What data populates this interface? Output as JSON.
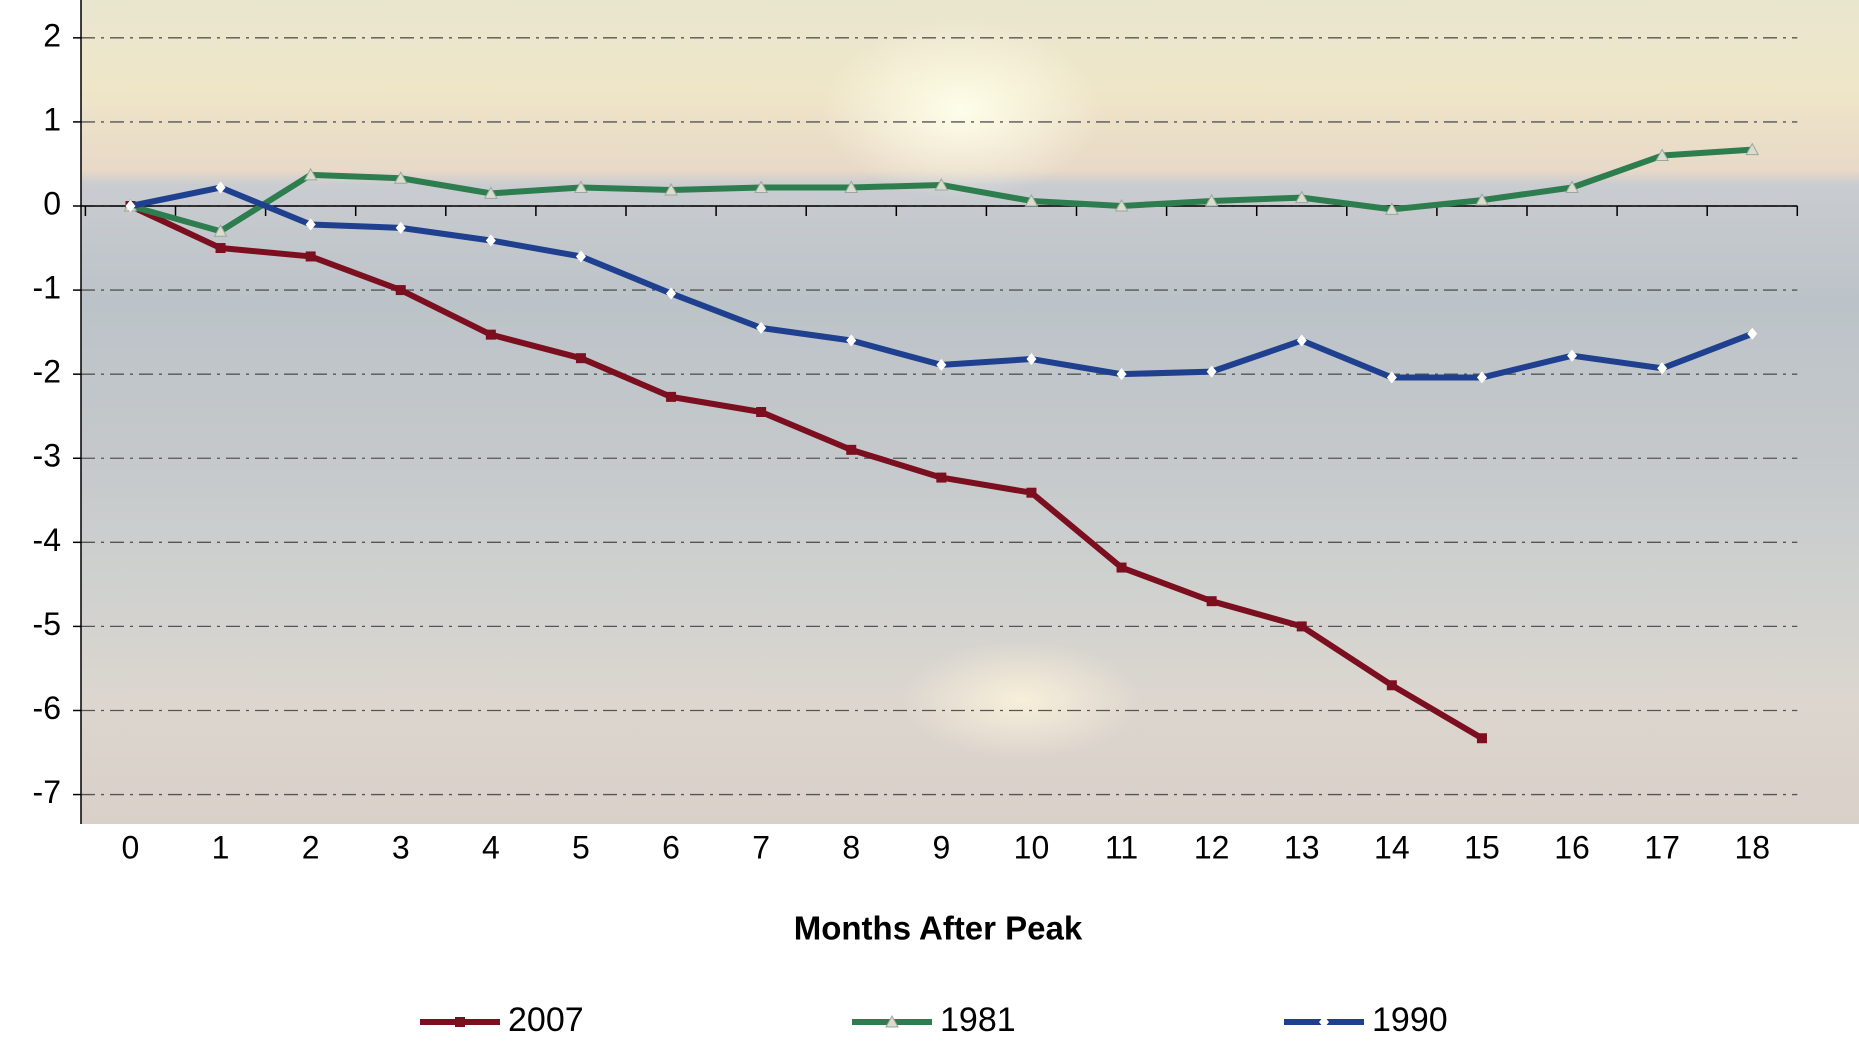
{
  "chart_data": {
    "type": "line",
    "x_label": "Months After Peak",
    "categories": [
      "0",
      "1",
      "2",
      "3",
      "4",
      "5",
      "6",
      "7",
      "8",
      "9",
      "10",
      "11",
      "12",
      "13",
      "14",
      "15",
      "16",
      "17",
      "18"
    ],
    "series": [
      {
        "name": "2007",
        "color": "#7b0f1f",
        "marker": "square",
        "values": [
          0,
          -0.5,
          -0.6,
          -1.0,
          -1.53,
          -1.81,
          -2.27,
          -2.45,
          -2.9,
          -3.23,
          -3.41,
          -4.3,
          -4.7,
          -5.0,
          -5.7,
          -6.33,
          null,
          null,
          null
        ]
      },
      {
        "name": "1981",
        "color": "#2e7d4f",
        "marker": "triangle",
        "values": [
          0,
          -0.3,
          0.37,
          0.33,
          0.15,
          0.22,
          0.19,
          0.22,
          0.22,
          0.25,
          0.06,
          0.0,
          0.06,
          0.1,
          -0.04,
          0.07,
          0.22,
          0.6,
          0.67
        ]
      },
      {
        "name": "1990",
        "color": "#1f3f8f",
        "marker": "diamond",
        "values": [
          0,
          0.22,
          -0.22,
          -0.26,
          -0.41,
          -0.6,
          -1.04,
          -1.45,
          -1.6,
          -1.89,
          -1.82,
          -2.0,
          -1.97,
          -1.6,
          -2.04,
          -2.04,
          -1.78,
          -1.93,
          -1.52
        ]
      }
    ],
    "ylim": [
      -7.35,
      2.45
    ],
    "yticks": [
      2,
      1,
      0,
      -1,
      -2,
      -3,
      -4,
      -5,
      -6,
      -7
    ],
    "grid": true,
    "legend": "bottom"
  }
}
